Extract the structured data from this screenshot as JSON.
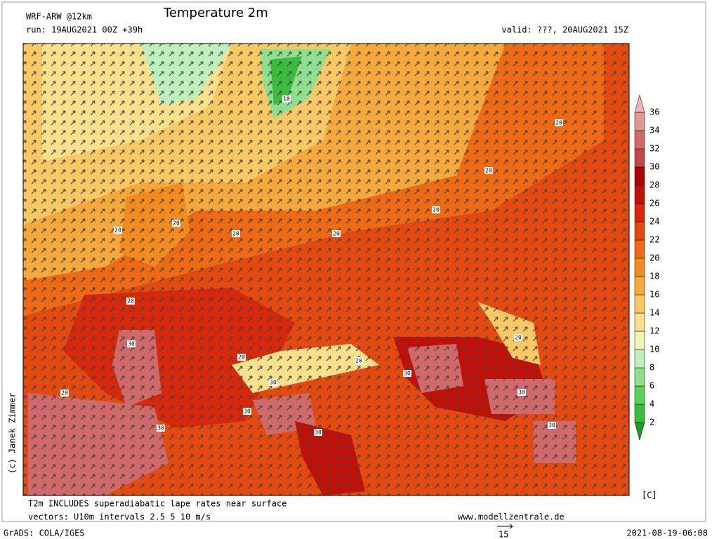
{
  "header": {
    "model": "WRF-ARW @12km",
    "title": "Temperature 2m",
    "run": "run: 19AUG2021 00Z +39h",
    "valid": "valid: ???, 20AUG2021 15Z"
  },
  "colorbar": {
    "levels": [
      2,
      4,
      6,
      8,
      10,
      12,
      14,
      16,
      18,
      20,
      22,
      24,
      26,
      28,
      30,
      32,
      34,
      36
    ],
    "colors": [
      "#1e9e1e",
      "#3cbc3c",
      "#5ad25a",
      "#8ee08e",
      "#bdf0bd",
      "#f0f5b4",
      "#f8e08c",
      "#f8c864",
      "#f5a93c",
      "#f28c1e",
      "#ee6a14",
      "#e44a10",
      "#d8280c",
      "#c01008",
      "#a80606",
      "#c04848",
      "#d06a6a",
      "#e49696",
      "#f0b4b4"
    ],
    "unit": "[C]"
  },
  "map": {
    "contour_labels": [
      "10",
      "20",
      "20",
      "20",
      "20",
      "20",
      "20",
      "20",
      "20",
      "20",
      "20",
      "20",
      "20",
      "30",
      "30",
      "30",
      "30",
      "30",
      "30",
      "30",
      "30"
    ]
  },
  "footer": {
    "credit": "(c) Janek Zimmer",
    "note": "T2m INCLUDES superadiabatic lape rates near surface",
    "vectors": "vectors: U10m intervals 2.5 5 10 m/s",
    "site": "www.modellzentrale.de",
    "grads": "GrADS: COLA/IGES",
    "ref_vector": "15",
    "timestamp": "2021-08-19-06:08"
  }
}
